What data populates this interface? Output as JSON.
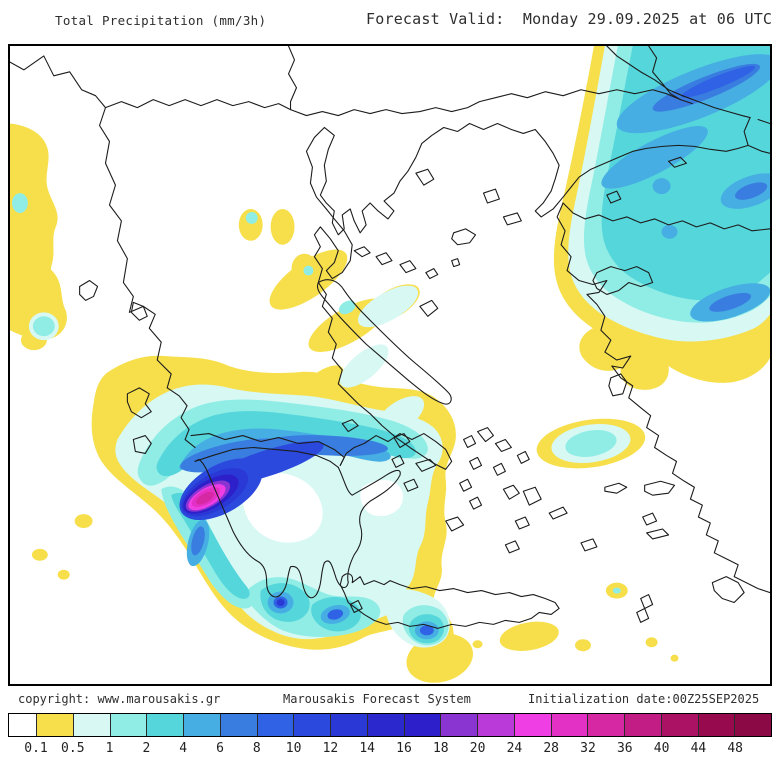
{
  "header": {
    "title": "Total Precipitation (mm/3h)",
    "forecast_valid": "Forecast Valid:  Monday 29.09.2025 at 06 UTC"
  },
  "footer": {
    "copyright": "copyright: www.marousakis.gr",
    "system_name": "Marousakis Forecast System",
    "initialization": "Initialization date:00Z25SEP2025"
  },
  "legend": {
    "first_cell_color": "#ffffff",
    "labels": [
      "0.1",
      "0.5",
      "1",
      "2",
      "4",
      "6",
      "8",
      "10",
      "12",
      "14",
      "16",
      "18",
      "20",
      "24",
      "28",
      "32",
      "36",
      "40",
      "44",
      "48"
    ],
    "colors": [
      "#f7df4b",
      "#d8f8f4",
      "#90ede5",
      "#55d6db",
      "#46aee2",
      "#3a7de0",
      "#2f62e4",
      "#2b49dd",
      "#2a38d5",
      "#2b28ce",
      "#2d1fc9",
      "#8a34d2",
      "#b93ad8",
      "#ef3ee4",
      "#e331c6",
      "#d528a2",
      "#c21d85",
      "#ac1264",
      "#980a4e",
      "#8b0a45"
    ]
  },
  "map": {
    "coastline_color": "#1c1c1c",
    "frame_color": "#000000",
    "background_color": "#ffffff"
  }
}
